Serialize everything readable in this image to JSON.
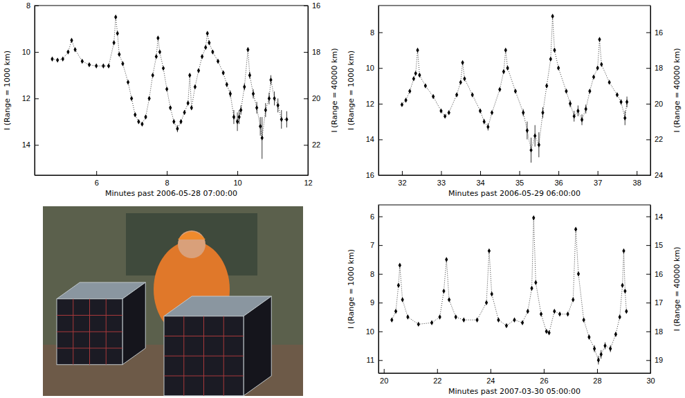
{
  "chart_data": [
    {
      "type": "scatter",
      "xlabel": "Minutes past 2006-05-28 07:00:00",
      "ylabel": "I (Range = 1000 km)",
      "y2label": "I (Range = 40000 km)",
      "x": [
        4.75,
        4.9,
        5.05,
        5.2,
        5.3,
        5.4,
        5.6,
        5.8,
        6.0,
        6.2,
        6.35,
        6.5,
        6.55,
        6.6,
        6.65,
        6.75,
        6.9,
        7.0,
        7.1,
        7.2,
        7.3,
        7.4,
        7.5,
        7.6,
        7.7,
        7.75,
        7.8,
        7.9,
        8.0,
        8.1,
        8.2,
        8.3,
        8.4,
        8.5,
        8.6,
        8.65,
        8.7,
        8.8,
        8.9,
        9.0,
        9.1,
        9.15,
        9.2,
        9.3,
        9.45,
        9.6,
        9.7,
        9.8,
        9.9,
        10.0,
        10.05,
        10.1,
        10.2,
        10.3,
        10.35,
        10.45,
        10.55,
        10.65,
        10.7,
        10.8,
        10.9,
        10.95,
        11.05,
        11.15,
        11.25,
        11.4
      ],
      "values": [
        10.3,
        10.35,
        10.3,
        10.0,
        9.5,
        9.9,
        10.4,
        10.55,
        10.6,
        10.6,
        10.6,
        9.6,
        8.5,
        9.2,
        10.1,
        10.5,
        11.3,
        12.0,
        12.7,
        13.0,
        13.1,
        12.8,
        12.0,
        11.0,
        10.2,
        9.4,
        10.0,
        10.7,
        11.6,
        12.4,
        13.0,
        13.3,
        13.0,
        12.6,
        12.2,
        11.0,
        12.4,
        11.5,
        10.8,
        10.2,
        9.8,
        9.2,
        9.6,
        10.0,
        10.4,
        10.9,
        11.4,
        11.8,
        12.8,
        13.0,
        12.8,
        12.5,
        11.5,
        9.9,
        11.0,
        11.8,
        12.4,
        13.2,
        13.7,
        12.5,
        12.0,
        11.2,
        12.0,
        12.3,
        12.9,
        12.9
      ],
      "errors": [
        0.05,
        0.05,
        0.05,
        0.05,
        0.05,
        0.05,
        0.05,
        0.05,
        0.05,
        0.05,
        0.05,
        0.05,
        0.05,
        0.05,
        0.05,
        0.05,
        0.05,
        0.05,
        0.08,
        0.08,
        0.08,
        0.08,
        0.05,
        0.05,
        0.05,
        0.05,
        0.05,
        0.05,
        0.05,
        0.08,
        0.1,
        0.15,
        0.1,
        0.1,
        0.08,
        0.08,
        0.08,
        0.05,
        0.05,
        0.05,
        0.05,
        0.05,
        0.05,
        0.05,
        0.05,
        0.08,
        0.1,
        0.15,
        0.3,
        0.4,
        0.3,
        0.2,
        0.15,
        0.1,
        0.15,
        0.2,
        0.25,
        0.4,
        0.9,
        0.3,
        0.25,
        0.2,
        0.3,
        0.3,
        0.4,
        0.35
      ],
      "xlim": [
        4.25,
        12
      ],
      "xticks": [
        6,
        8,
        10,
        12
      ],
      "ylim": [
        15.3,
        8
      ],
      "yticks": [
        8,
        10,
        12,
        14
      ],
      "y2lim": [
        23.3,
        16
      ],
      "y2ticks": [
        16,
        18,
        20,
        22
      ],
      "color": "#000000",
      "marker": "diamond",
      "line_style": "dotted"
    },
    {
      "type": "scatter",
      "xlabel": "Minutes past 2006-05-29 06:00:00",
      "ylabel": "I (Range = 1000 km)",
      "y2label": "I (Range = 40000 km)",
      "x": [
        32.0,
        32.1,
        32.2,
        32.3,
        32.35,
        32.4,
        32.45,
        32.6,
        32.8,
        33.0,
        33.1,
        33.2,
        33.4,
        33.5,
        33.55,
        33.6,
        33.8,
        34.0,
        34.1,
        34.2,
        34.3,
        34.5,
        34.6,
        34.65,
        34.7,
        34.9,
        35.1,
        35.2,
        35.3,
        35.4,
        35.5,
        35.6,
        35.7,
        35.8,
        35.85,
        35.9,
        36.0,
        36.2,
        36.3,
        36.4,
        36.5,
        36.6,
        36.7,
        36.8,
        36.9,
        37.0,
        37.05,
        37.1,
        37.3,
        37.5,
        37.6,
        37.7,
        37.75
      ],
      "values": [
        12.05,
        11.8,
        11.3,
        10.6,
        10.3,
        9.0,
        10.4,
        11.0,
        11.6,
        12.4,
        12.7,
        12.5,
        11.5,
        10.8,
        9.7,
        10.6,
        11.5,
        12.4,
        13.0,
        13.3,
        12.5,
        11.2,
        10.2,
        9.0,
        10.0,
        11.3,
        12.5,
        13.5,
        14.6,
        13.8,
        14.3,
        12.5,
        11.0,
        9.5,
        7.1,
        9.0,
        10.0,
        11.3,
        12.0,
        12.7,
        12.4,
        12.9,
        12.3,
        11.3,
        10.5,
        10.0,
        8.4,
        9.8,
        10.8,
        11.5,
        11.9,
        12.8,
        11.9
      ],
      "errors": [
        0.05,
        0.05,
        0.05,
        0.05,
        0.05,
        0.05,
        0.05,
        0.05,
        0.05,
        0.08,
        0.08,
        0.08,
        0.05,
        0.05,
        0.05,
        0.05,
        0.05,
        0.1,
        0.15,
        0.2,
        0.1,
        0.05,
        0.05,
        0.05,
        0.05,
        0.05,
        0.2,
        0.5,
        0.7,
        0.6,
        0.7,
        0.3,
        0.1,
        0.05,
        0.05,
        0.05,
        0.05,
        0.1,
        0.2,
        0.3,
        0.3,
        0.3,
        0.25,
        0.1,
        0.05,
        0.05,
        0.05,
        0.05,
        0.05,
        0.1,
        0.15,
        0.4,
        0.3
      ],
      "xlim": [
        31.4,
        38.35
      ],
      "xticks": [
        32,
        33,
        34,
        35,
        36,
        37,
        38
      ],
      "ylim": [
        16,
        6.5
      ],
      "yticks": [
        8,
        10,
        12,
        14,
        16
      ],
      "y2lim": [
        24,
        14.5
      ],
      "y2ticks": [
        16,
        18,
        20,
        22,
        24
      ],
      "color": "#000000",
      "marker": "diamond",
      "line_style": "dotted"
    },
    {
      "type": "scatter",
      "xlabel": "Minutes past 2007-03-30 05:00:00",
      "ylabel": "I (Range = 1000 km)",
      "y2label": "I (Range = 40000 km)",
      "x": [
        20.3,
        20.45,
        20.55,
        20.6,
        20.7,
        20.9,
        21.3,
        21.8,
        22.1,
        22.25,
        22.35,
        22.45,
        22.7,
        23.0,
        23.5,
        23.85,
        23.95,
        24.05,
        24.3,
        24.6,
        24.9,
        25.2,
        25.4,
        25.55,
        25.62,
        25.7,
        25.9,
        26.1,
        26.2,
        26.4,
        26.6,
        26.9,
        27.1,
        27.2,
        27.3,
        27.5,
        27.7,
        27.9,
        28.05,
        28.15,
        28.3,
        28.5,
        28.7,
        28.85,
        28.95,
        29.0,
        29.05,
        29.1
      ],
      "values": [
        9.6,
        9.3,
        8.4,
        7.7,
        8.9,
        9.5,
        9.75,
        9.7,
        9.5,
        8.6,
        7.5,
        8.9,
        9.5,
        9.6,
        9.6,
        9.0,
        7.2,
        8.7,
        9.6,
        9.8,
        9.6,
        9.7,
        9.3,
        8.5,
        6.05,
        8.3,
        9.4,
        10.0,
        10.05,
        9.3,
        9.4,
        9.4,
        8.9,
        6.45,
        8.0,
        9.6,
        10.2,
        10.6,
        11.0,
        10.8,
        10.5,
        10.6,
        10.1,
        9.5,
        8.4,
        7.2,
        8.6,
        9.3
      ],
      "errors": [
        0.03,
        0.03,
        0.03,
        0.03,
        0.03,
        0.03,
        0.03,
        0.03,
        0.03,
        0.03,
        0.03,
        0.03,
        0.03,
        0.03,
        0.03,
        0.03,
        0.03,
        0.03,
        0.03,
        0.03,
        0.03,
        0.03,
        0.03,
        0.03,
        0.03,
        0.03,
        0.03,
        0.05,
        0.05,
        0.05,
        0.05,
        0.05,
        0.03,
        0.03,
        0.03,
        0.05,
        0.08,
        0.12,
        0.15,
        0.15,
        0.12,
        0.12,
        0.08,
        0.05,
        0.05,
        0.05,
        0.05,
        0.05
      ],
      "xlim": [
        19.8,
        30
      ],
      "xticks": [
        20,
        22,
        24,
        26,
        28,
        30
      ],
      "ylim": [
        11.45,
        5.6
      ],
      "yticks": [
        6,
        7,
        8,
        9,
        10,
        11
      ],
      "y2lim": [
        19.45,
        13.6
      ],
      "y2ticks": [
        14,
        15,
        16,
        17,
        18,
        19
      ],
      "color": "#000000",
      "marker": "diamond",
      "line_style": "dotted"
    }
  ]
}
